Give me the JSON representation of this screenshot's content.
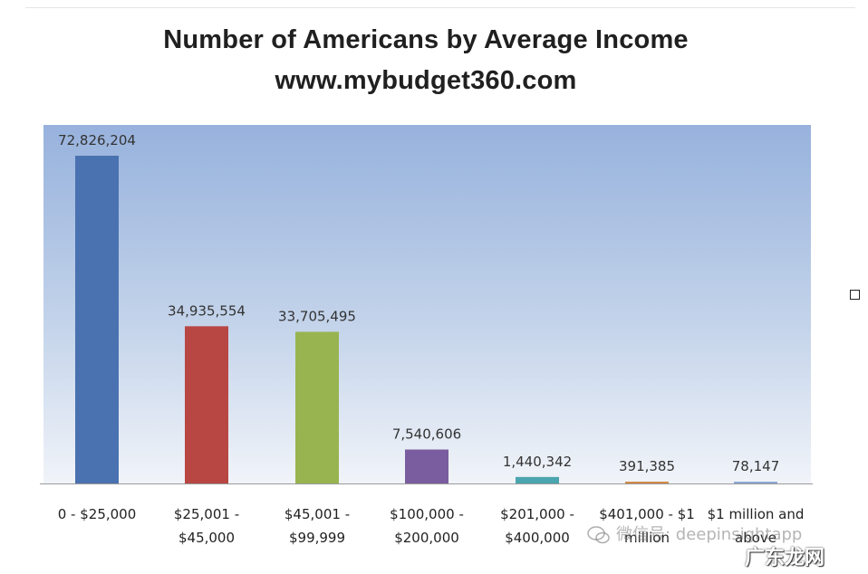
{
  "title_line1": "Number of Americans by Average Income",
  "title_line2": "www.mybudget360.com",
  "watermark": "微信号: deepinsightapp",
  "watermark2": "广东龙网",
  "chart_data": {
    "type": "bar",
    "title": "Number of Americans by Average Income",
    "subtitle": "www.mybudget360.com",
    "xlabel": "",
    "ylabel": "",
    "ylim": [
      0,
      80000000
    ],
    "grid": false,
    "categories": [
      [
        "0 - $25,000"
      ],
      [
        "$25,001 -",
        "$45,000"
      ],
      [
        "$45,001 -",
        "$99,999"
      ],
      [
        "$100,000 -",
        "$200,000"
      ],
      [
        "$201,000 -",
        "$400,000"
      ],
      [
        "$401,000 - $1",
        "million"
      ],
      [
        "$1 million and",
        "above"
      ]
    ],
    "values": [
      72826204,
      34935554,
      33705495,
      7540606,
      1440342,
      391385,
      78147
    ],
    "value_labels": [
      "72,826,204",
      "34,935,554",
      "33,705,495",
      "7,540,606",
      "1,440,342",
      "391,385",
      "78,147"
    ],
    "colors": [
      "#4a72b0",
      "#b84743",
      "#98b450",
      "#7a5d9e",
      "#4ba5ae",
      "#d08a44",
      "#8da8d4"
    ]
  }
}
